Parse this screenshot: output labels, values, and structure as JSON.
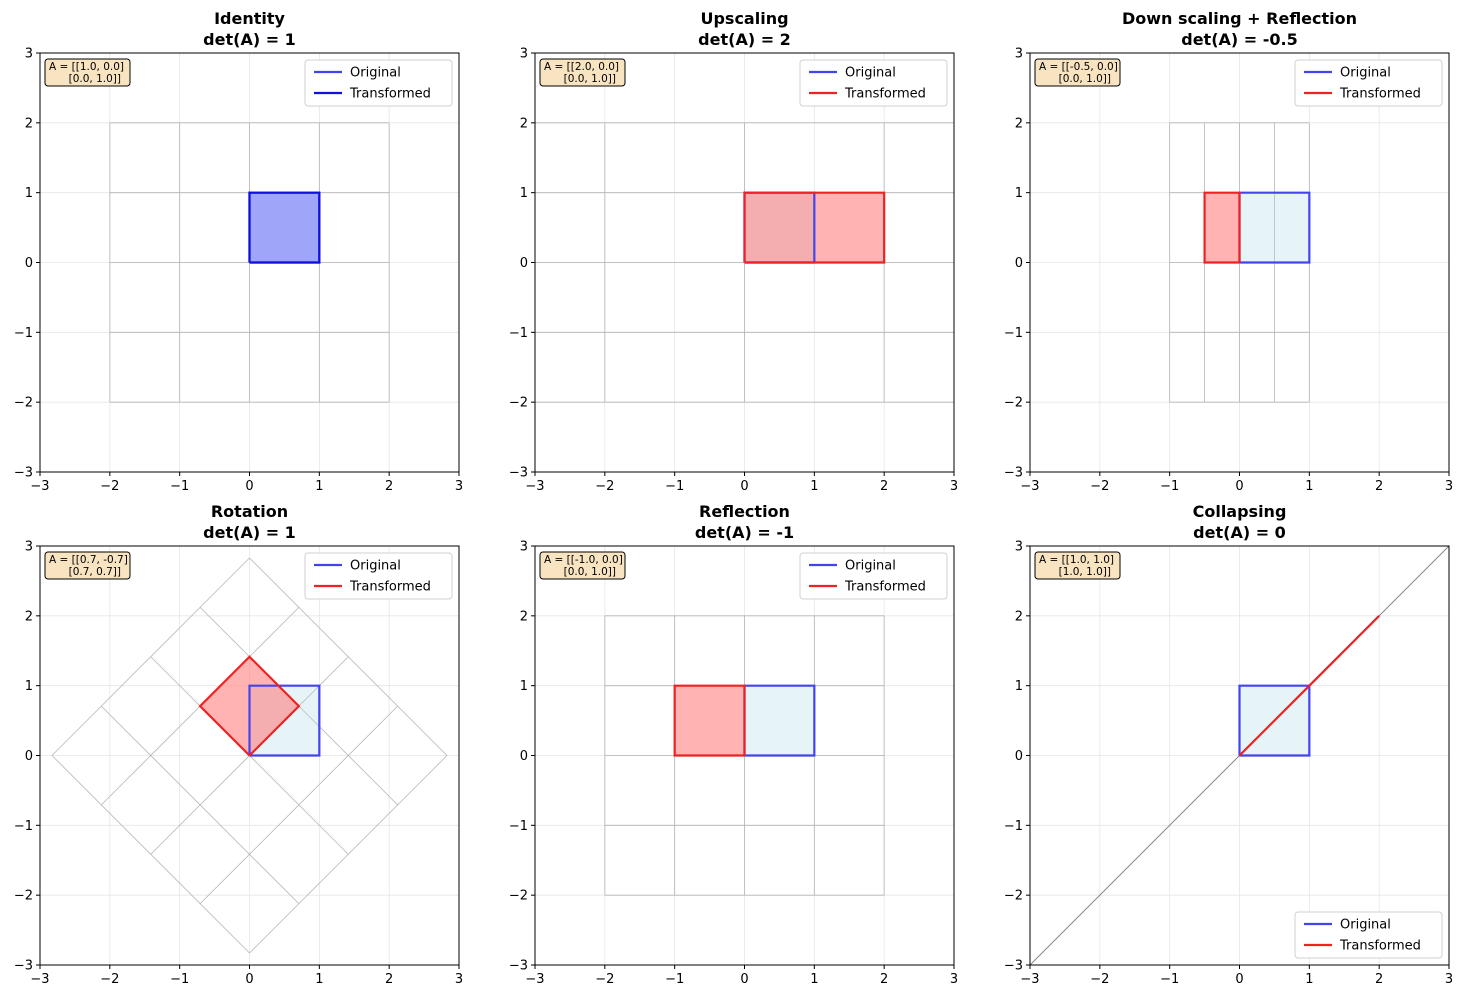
{
  "colors": {
    "original": "#4444ee",
    "transformed_red": "#ee2222",
    "transformed_identity": "#1111dd",
    "original_fill": "#add8e6",
    "transformed_fill": "#ff8080",
    "identity_fill": "#6b74f4",
    "matrix_box_bg": "#f9e4c1",
    "grid": "#b5b5b5",
    "bg_grid": "#e6e6e6"
  },
  "chart_data": [
    {
      "type": "line",
      "title": "Identity",
      "subtitle": "det(A) = 1",
      "matrix": [
        [
          1.0,
          0.0
        ],
        [
          0.0,
          1.0
        ]
      ],
      "matrix_label": [
        "A = [[1.0, 0.0]",
        "[0.0, 1.0]]"
      ],
      "xlim": [
        -3,
        3
      ],
      "ylim": [
        -3,
        3
      ],
      "xticks": [
        "−3",
        "−2",
        "−1",
        "0",
        "1",
        "2",
        "3"
      ],
      "yticks": [
        "−3",
        "−2",
        "−1",
        "0",
        "1",
        "2",
        "3"
      ],
      "legend_position": "top-right",
      "series": [
        {
          "name": "Original",
          "x": [
            0,
            1,
            1,
            0,
            0
          ],
          "y": [
            0,
            0,
            1,
            1,
            0
          ]
        },
        {
          "name": "Transformed",
          "x": [
            0,
            1,
            1,
            0,
            0
          ],
          "y": [
            0,
            0,
            1,
            1,
            0
          ]
        }
      ]
    },
    {
      "type": "line",
      "title": "Upscaling",
      "subtitle": "det(A) = 2",
      "matrix": [
        [
          2.0,
          0.0
        ],
        [
          0.0,
          1.0
        ]
      ],
      "matrix_label": [
        "A = [[2.0, 0.0]",
        "[0.0, 1.0]]"
      ],
      "xlim": [
        -3,
        3
      ],
      "ylim": [
        -3,
        3
      ],
      "xticks": [
        "−3",
        "−2",
        "−1",
        "0",
        "1",
        "2",
        "3"
      ],
      "yticks": [
        "−3",
        "−2",
        "−1",
        "0",
        "1",
        "2",
        "3"
      ],
      "legend_position": "top-right",
      "series": [
        {
          "name": "Original",
          "x": [
            0,
            1,
            1,
            0,
            0
          ],
          "y": [
            0,
            0,
            1,
            1,
            0
          ]
        },
        {
          "name": "Transformed",
          "x": [
            0,
            2,
            2,
            0,
            0
          ],
          "y": [
            0,
            0,
            1,
            1,
            0
          ]
        }
      ]
    },
    {
      "type": "line",
      "title": "Down scaling + Reflection",
      "subtitle": "det(A) = -0.5",
      "matrix": [
        [
          -0.5,
          0.0
        ],
        [
          0.0,
          1.0
        ]
      ],
      "matrix_label": [
        "A = [[-0.5, 0.0]",
        "[0.0, 1.0]]"
      ],
      "xlim": [
        -3,
        3
      ],
      "ylim": [
        -3,
        3
      ],
      "xticks": [
        "−3",
        "−2",
        "−1",
        "0",
        "1",
        "2",
        "3"
      ],
      "yticks": [
        "−3",
        "−2",
        "−1",
        "0",
        "1",
        "2",
        "3"
      ],
      "legend_position": "top-right",
      "series": [
        {
          "name": "Original",
          "x": [
            0,
            1,
            1,
            0,
            0
          ],
          "y": [
            0,
            0,
            1,
            1,
            0
          ]
        },
        {
          "name": "Transformed",
          "x": [
            0,
            -0.5,
            -0.5,
            0,
            0
          ],
          "y": [
            0,
            0,
            1,
            1,
            0
          ]
        }
      ]
    },
    {
      "type": "line",
      "title": "Rotation",
      "subtitle": "det(A) = 1",
      "matrix": [
        [
          0.7071,
          -0.7071
        ],
        [
          0.7071,
          0.7071
        ]
      ],
      "matrix_label": [
        "A = [[0.7, -0.7]",
        "[0.7, 0.7]]"
      ],
      "xlim": [
        -3,
        3
      ],
      "ylim": [
        -3,
        3
      ],
      "xticks": [
        "−3",
        "−2",
        "−1",
        "0",
        "1",
        "2",
        "3"
      ],
      "yticks": [
        "−3",
        "−2",
        "−1",
        "0",
        "1",
        "2",
        "3"
      ],
      "legend_position": "top-right",
      "series": [
        {
          "name": "Original",
          "x": [
            0,
            1,
            1,
            0,
            0
          ],
          "y": [
            0,
            0,
            1,
            1,
            0
          ]
        },
        {
          "name": "Transformed",
          "x": [
            0,
            0.707,
            0,
            -0.707,
            0
          ],
          "y": [
            0,
            0.707,
            1.414,
            0.707,
            0
          ]
        }
      ]
    },
    {
      "type": "line",
      "title": "Reflection",
      "subtitle": "det(A) = -1",
      "matrix": [
        [
          -1.0,
          0.0
        ],
        [
          0.0,
          1.0
        ]
      ],
      "matrix_label": [
        "A = [[-1.0, 0.0]",
        "[0.0, 1.0]]"
      ],
      "xlim": [
        -3,
        3
      ],
      "ylim": [
        -3,
        3
      ],
      "xticks": [
        "−3",
        "−2",
        "−1",
        "0",
        "1",
        "2",
        "3"
      ],
      "yticks": [
        "−3",
        "−2",
        "−1",
        "0",
        "1",
        "2",
        "3"
      ],
      "legend_position": "top-right",
      "series": [
        {
          "name": "Original",
          "x": [
            0,
            1,
            1,
            0,
            0
          ],
          "y": [
            0,
            0,
            1,
            1,
            0
          ]
        },
        {
          "name": "Transformed",
          "x": [
            0,
            -1,
            -1,
            0,
            0
          ],
          "y": [
            0,
            0,
            1,
            1,
            0
          ]
        }
      ]
    },
    {
      "type": "line",
      "title": "Collapsing",
      "subtitle": "det(A) = 0",
      "matrix": [
        [
          1.0,
          1.0
        ],
        [
          1.0,
          1.0
        ]
      ],
      "matrix_label": [
        "A = [[1.0, 1.0]",
        "[1.0, 1.0]]"
      ],
      "xlim": [
        -3,
        3
      ],
      "ylim": [
        -3,
        3
      ],
      "xticks": [
        "−3",
        "−2",
        "−1",
        "0",
        "1",
        "2",
        "3"
      ],
      "yticks": [
        "−3",
        "−2",
        "−1",
        "0",
        "1",
        "2",
        "3"
      ],
      "legend_position": "bottom-right",
      "series": [
        {
          "name": "Original",
          "x": [
            0,
            1,
            1,
            0,
            0
          ],
          "y": [
            0,
            0,
            1,
            1,
            0
          ]
        },
        {
          "name": "Transformed",
          "x": [
            0,
            1,
            2,
            1,
            0
          ],
          "y": [
            0,
            1,
            2,
            1,
            0
          ]
        }
      ]
    }
  ]
}
